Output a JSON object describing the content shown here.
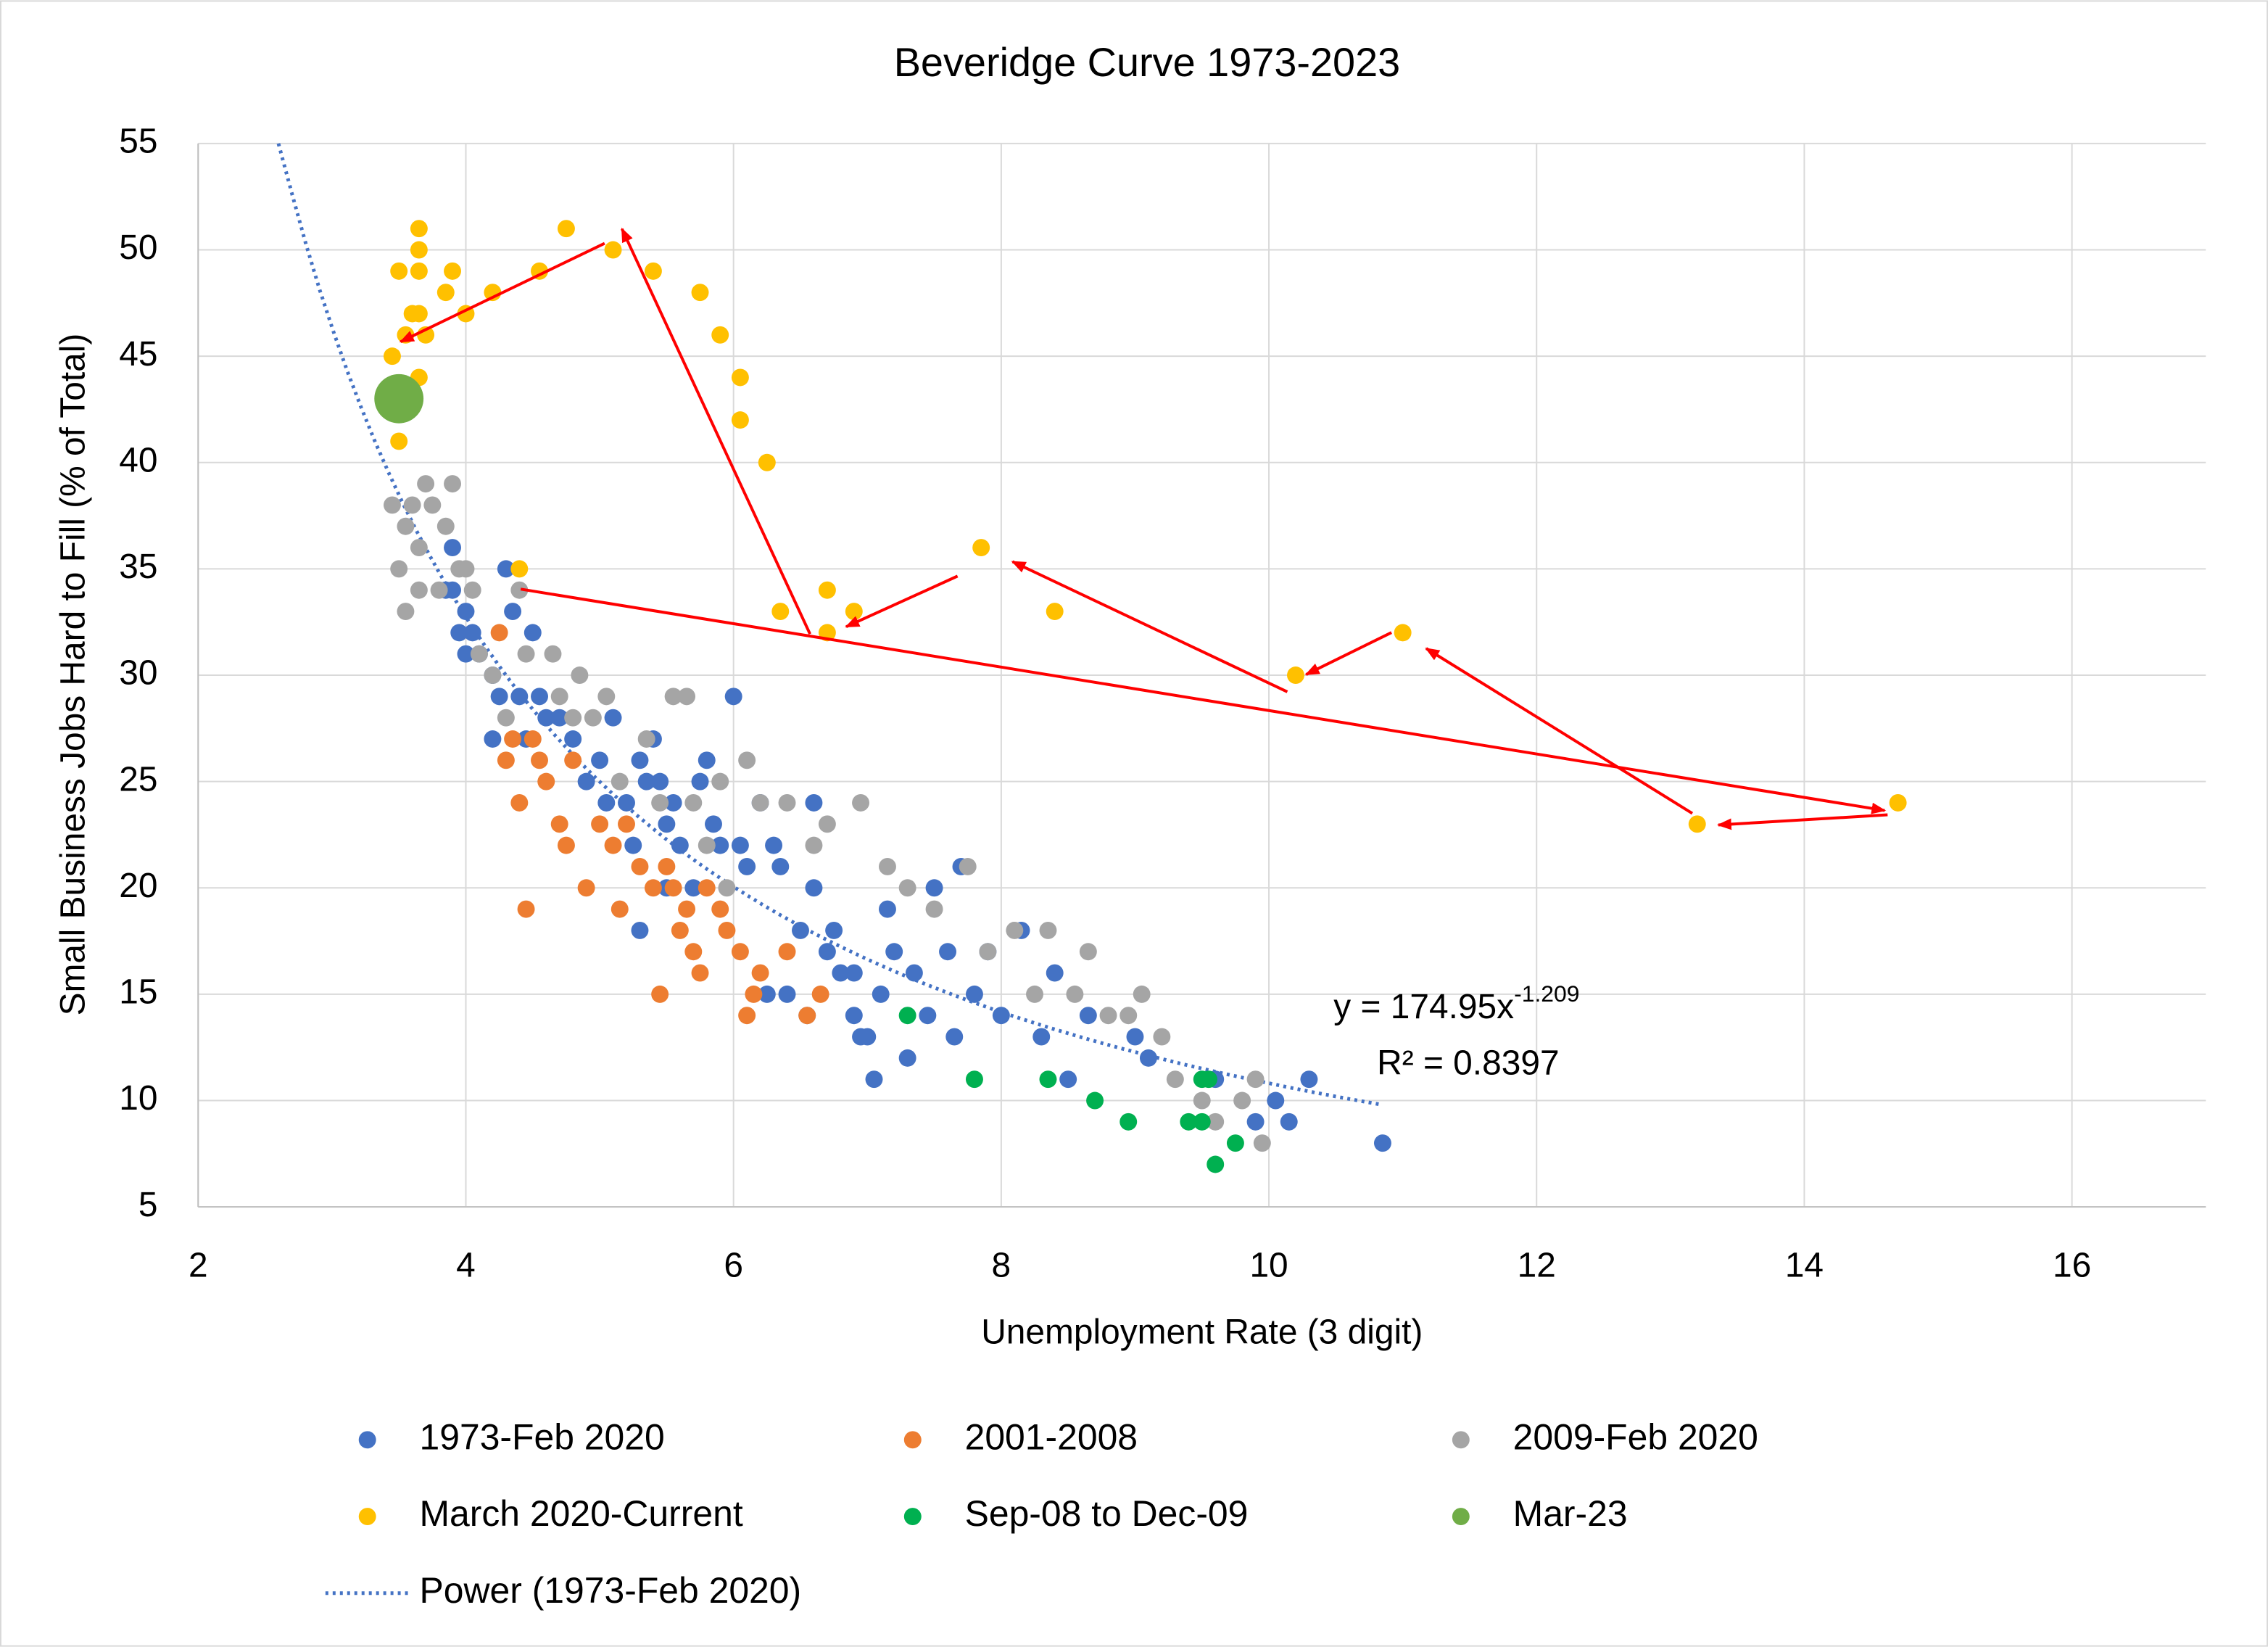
{
  "chart_data": {
    "type": "scatter",
    "title": "Beveridge Curve 1973-2023",
    "x_label": "Unemployment Rate (3 digit)",
    "y_label": "Small Business Jobs Hard to Fill (% of Total)",
    "xlim": [
      2,
      17
    ],
    "xticks": [
      2,
      4,
      6,
      8,
      10,
      12,
      14,
      16
    ],
    "ylim": [
      5,
      55
    ],
    "yticks": [
      5,
      10,
      15,
      20,
      25,
      30,
      35,
      40,
      45,
      50,
      55
    ],
    "grid": true,
    "legend": "bottom",
    "series": [
      {
        "name": "1973-Feb 2020",
        "color": "#4472c4",
        "x": [
          3.9,
          3.9,
          3.85,
          4.0,
          3.95,
          4.05,
          4.0,
          4.1,
          4.2,
          4.25,
          4.3,
          4.35,
          4.4,
          4.2,
          4.45,
          4.5,
          4.55,
          4.6,
          4.7,
          4.8,
          4.9,
          5.0,
          5.05,
          5.1,
          5.2,
          5.25,
          5.3,
          5.35,
          5.4,
          5.45,
          5.5,
          5.55,
          5.6,
          5.3,
          5.5,
          5.7,
          5.75,
          5.8,
          5.85,
          5.9,
          6.0,
          6.05,
          6.1,
          6.2,
          6.3,
          6.35,
          6.4,
          6.5,
          6.6,
          6.6,
          6.7,
          6.75,
          6.8,
          6.9,
          6.95,
          7.0,
          7.05,
          7.15,
          7.2,
          7.3,
          7.35,
          7.45,
          7.5,
          7.6,
          7.65,
          7.7,
          7.8,
          7.9,
          8.0,
          8.15,
          8.3,
          8.4,
          8.5,
          8.65,
          9.0,
          9.1,
          9.6,
          9.9,
          10.05,
          10.15,
          10.3,
          10.85,
          6.9,
          7.1,
          6.25,
          6.55
        ],
        "y": [
          36,
          34,
          34,
          33,
          32,
          32,
          31,
          31,
          30,
          29,
          35,
          33,
          29,
          27,
          27,
          32,
          29,
          28,
          28,
          27,
          25,
          26,
          24,
          28,
          24,
          22,
          26,
          25,
          27,
          25,
          23,
          24,
          22,
          18,
          20,
          20,
          25,
          26,
          23,
          22,
          29,
          22,
          21,
          24,
          22,
          21,
          15,
          18,
          24,
          20,
          17,
          18,
          16,
          14,
          13,
          13,
          11,
          19,
          17,
          12,
          16,
          14,
          20,
          17,
          13,
          21,
          15,
          17,
          14,
          18,
          13,
          16,
          11,
          14,
          13,
          12,
          11,
          9,
          10,
          9,
          11,
          8,
          16,
          15,
          15,
          14
        ]
      },
      {
        "name": "2001-2008",
        "color": "#ed7d31",
        "x": [
          4.25,
          4.3,
          4.4,
          4.45,
          4.5,
          4.55,
          4.6,
          4.7,
          4.75,
          4.8,
          4.9,
          5.0,
          5.1,
          5.15,
          5.2,
          5.3,
          5.4,
          5.45,
          5.5,
          5.6,
          5.65,
          5.7,
          5.75,
          5.8,
          5.9,
          5.95,
          6.05,
          6.1,
          6.15,
          6.2,
          6.4,
          6.55,
          6.65,
          4.35,
          5.55
        ],
        "y": [
          32,
          26,
          24,
          19,
          27,
          26,
          25,
          23,
          22,
          26,
          20,
          23,
          22,
          19,
          23,
          21,
          20,
          15,
          21,
          18,
          19,
          17,
          16,
          20,
          19,
          18,
          17,
          14,
          15,
          16,
          17,
          14,
          15,
          27,
          20
        ]
      },
      {
        "name": "2009-Feb 2020",
        "color": "#a5a5a5",
        "x": [
          3.45,
          3.5,
          3.55,
          3.55,
          3.6,
          3.65,
          3.65,
          3.7,
          3.75,
          3.8,
          3.85,
          3.9,
          3.95,
          4.0,
          4.05,
          4.1,
          4.2,
          4.3,
          4.4,
          4.45,
          4.65,
          4.7,
          4.8,
          4.85,
          4.95,
          5.05,
          5.15,
          5.35,
          5.45,
          5.55,
          5.65,
          5.7,
          5.8,
          5.9,
          5.95,
          6.1,
          6.2,
          6.4,
          6.6,
          6.7,
          6.95,
          7.15,
          7.3,
          7.5,
          7.75,
          7.9,
          8.1,
          8.25,
          8.35,
          8.55,
          8.65,
          8.8,
          8.95,
          9.05,
          9.2,
          9.3,
          9.6,
          9.8,
          9.9,
          9.95,
          9.5
        ],
        "y": [
          38,
          35,
          37,
          33,
          38,
          36,
          34,
          39,
          38,
          34,
          37,
          39,
          35,
          35,
          34,
          31,
          30,
          28,
          34,
          31,
          31,
          29,
          28,
          30,
          28,
          29,
          25,
          27,
          24,
          29,
          29,
          24,
          22,
          25,
          20,
          26,
          24,
          24,
          22,
          23,
          24,
          21,
          20,
          19,
          21,
          17,
          18,
          15,
          18,
          15,
          17,
          14,
          14,
          15,
          13,
          11,
          9,
          10,
          11,
          8,
          10
        ]
      },
      {
        "name": "March 2020-Current",
        "color": "#ffc000",
        "x": [
          3.45,
          3.5,
          3.55,
          3.6,
          3.65,
          3.65,
          3.65,
          3.65,
          3.7,
          3.65,
          3.85,
          3.9,
          4.0,
          4.2,
          4.55,
          4.75,
          5.1,
          5.4,
          5.75,
          5.9,
          6.05,
          6.05,
          6.25,
          6.35,
          6.7,
          6.7,
          6.9,
          7.85,
          8.4,
          10.2,
          11.0,
          13.2,
          14.7,
          4.4,
          3.5
        ],
        "y": [
          45,
          49,
          46,
          47,
          47,
          50,
          51,
          49,
          46,
          44,
          48,
          49,
          47,
          48,
          49,
          51,
          50,
          49,
          48,
          46,
          44,
          42,
          40,
          33,
          34,
          32,
          33,
          36,
          33,
          30,
          32,
          23,
          24,
          35,
          41
        ]
      },
      {
        "name": "Sep-08 to Dec-09",
        "color": "#00b050",
        "x": [
          7.3,
          7.8,
          8.35,
          8.7,
          8.95,
          9.4,
          9.5,
          9.5,
          9.6,
          9.75,
          9.55
        ],
        "y": [
          14,
          11,
          11,
          10,
          9,
          9,
          9,
          11,
          7,
          8,
          11
        ]
      },
      {
        "name": "Mar-23",
        "color": "#70ad47",
        "x": [
          3.5
        ],
        "y": [
          43
        ]
      }
    ],
    "trendline": {
      "name": "Power (1973-Feb 2020)",
      "color": "#4472c4",
      "coefficient": 174.95,
      "exponent": -1.209,
      "x_range": [
        2.6,
        10.85
      ]
    },
    "annotations": {
      "equation": "y = 174.95x",
      "equation_exponent": "-1.209",
      "r_squared": "R² = 0.8397"
    }
  }
}
